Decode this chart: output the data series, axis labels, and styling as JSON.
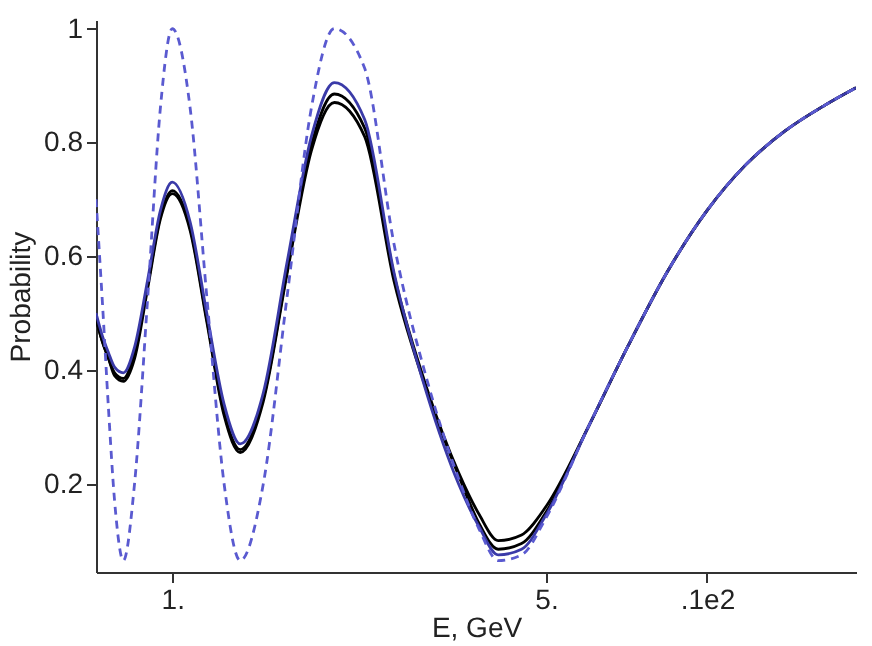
{
  "chart_data": {
    "type": "line",
    "xlabel": "E, GeV",
    "ylabel": "Probability",
    "log": "x",
    "x": [
      0.72,
      0.74,
      0.76,
      0.78,
      0.81,
      0.85,
      0.9,
      0.95,
      1.0,
      1.08,
      1.16,
      1.25,
      1.34,
      1.48,
      1.64,
      1.82,
      2.01,
      2.29,
      2.6,
      3.0,
      3.43,
      3.75,
      4.07,
      4.5,
      5,
      6,
      7.1,
      8.4,
      10,
      11.8,
      14,
      16.6,
      19
    ],
    "xlim": [
      0.72,
      19
    ],
    "xticks": [
      {
        "value": 1,
        "label": "1."
      },
      {
        "value": 5,
        "label": "5."
      },
      {
        "value": 10,
        "label": ".1e2"
      }
    ],
    "ylim": [
      0.045,
      1.015
    ],
    "yticks": [
      0.2,
      0.4,
      0.6,
      0.8,
      1
    ],
    "series": [
      {
        "color": "#000000",
        "line_style": "solid",
        "values": [
          0.49,
          0.45,
          0.42,
          0.395,
          0.385,
          0.43,
          0.55,
          0.67,
          0.715,
          0.65,
          0.49,
          0.325,
          0.26,
          0.35,
          0.575,
          0.795,
          0.885,
          0.825,
          0.566,
          0.365,
          0.22,
          0.146,
          0.1,
          0.11,
          0.16,
          0.3,
          0.44,
          0.57,
          0.68,
          0.76,
          0.82,
          0.865,
          0.896
        ]
      },
      {
        "color": "#000000",
        "line_style": "solid",
        "values": [
          0.49,
          0.45,
          0.42,
          0.39,
          0.38,
          0.42,
          0.545,
          0.665,
          0.71,
          0.645,
          0.485,
          0.32,
          0.255,
          0.345,
          0.57,
          0.785,
          0.87,
          0.81,
          0.555,
          0.36,
          0.215,
          0.13,
          0.085,
          0.095,
          0.15,
          0.3,
          0.44,
          0.57,
          0.68,
          0.76,
          0.82,
          0.865,
          0.896
        ]
      },
      {
        "color": "#3a3aa8",
        "line_style": "solid",
        "values": [
          0.5,
          0.46,
          0.43,
          0.405,
          0.395,
          0.44,
          0.56,
          0.68,
          0.73,
          0.66,
          0.5,
          0.34,
          0.27,
          0.36,
          0.59,
          0.81,
          0.905,
          0.84,
          0.57,
          0.355,
          0.2,
          0.124,
          0.075,
          0.085,
          0.145,
          0.3,
          0.44,
          0.57,
          0.68,
          0.76,
          0.82,
          0.865,
          0.896
        ]
      },
      {
        "color": "#5a5ad0",
        "line_style": "dashed",
        "values": [
          0.7,
          0.52,
          0.33,
          0.17,
          0.065,
          0.2,
          0.53,
          0.86,
          1.0,
          0.86,
          0.53,
          0.2,
          0.065,
          0.2,
          0.53,
          0.86,
          1.0,
          0.93,
          0.62,
          0.38,
          0.21,
          0.12,
          0.065,
          0.075,
          0.14,
          0.3,
          0.44,
          0.57,
          0.68,
          0.76,
          0.82,
          0.865,
          0.896
        ]
      }
    ]
  }
}
